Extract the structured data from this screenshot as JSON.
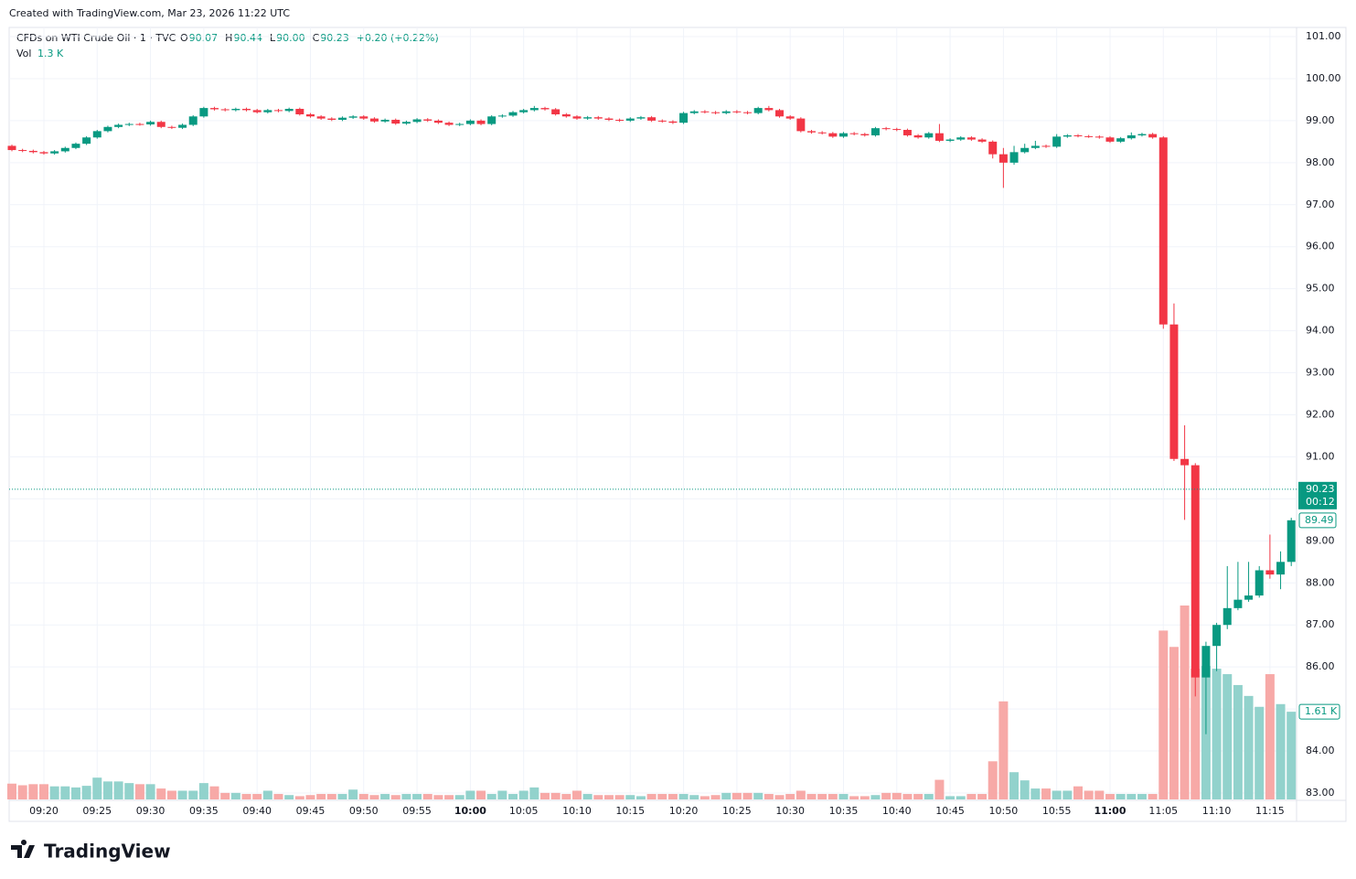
{
  "header": {
    "created": "Created with TradingView.com, Mar 23, 2026 11:22 UTC",
    "footer_logo": "TradingView"
  },
  "chart_data": {
    "type": "candlestick",
    "title": "CFDs on WTI Crude Oil · 1 · TVC",
    "ohlc_legend": [
      {
        "name": "O",
        "value": 90.07,
        "label": "90.07"
      },
      {
        "name": "H",
        "value": 90.44,
        "label": "90.44"
      },
      {
        "name": "L",
        "value": 90.0,
        "label": "90.00"
      },
      {
        "name": "C",
        "value": 90.23,
        "label": "90.23"
      }
    ],
    "change_label": "+0.20 (+0.22%)",
    "volume_legend": {
      "name": "Vol",
      "value": 1.3,
      "label": "1.3 K"
    },
    "up_color": "#089981",
    "down_color": "#f23645",
    "volume_up_color": "#92d2cc",
    "volume_down_color": "#f7a9a7",
    "ylim": [
      83,
      101
    ],
    "yticks": [
      {
        "value": 83,
        "label": "83.00"
      },
      {
        "value": 84,
        "label": "84.00"
      },
      {
        "value": 85,
        "label": "85.00"
      },
      {
        "value": 86,
        "label": "86.00"
      },
      {
        "value": 87,
        "label": "87.00"
      },
      {
        "value": 88,
        "label": "88.00"
      },
      {
        "value": 89,
        "label": "89.00"
      },
      {
        "value": 90,
        "label": "90.00"
      },
      {
        "value": 91,
        "label": "91.00"
      },
      {
        "value": 92,
        "label": "92.00"
      },
      {
        "value": 93,
        "label": "93.00"
      },
      {
        "value": 94,
        "label": "94.00"
      },
      {
        "value": 95,
        "label": "95.00"
      },
      {
        "value": 96,
        "label": "96.00"
      },
      {
        "value": 97,
        "label": "97.00"
      },
      {
        "value": 98,
        "label": "98.00"
      },
      {
        "value": 99,
        "label": "99.00"
      },
      {
        "value": 100,
        "label": "100.00"
      },
      {
        "value": 101,
        "label": "101.00"
      }
    ],
    "grid": true,
    "last_price": {
      "value": 90.23,
      "label": "90.23",
      "countdown": "00:12"
    },
    "close_marker": {
      "value": 89.49,
      "label": "89.49"
    },
    "volume_marker": {
      "value": 1.61,
      "label": "1.61 K"
    },
    "categories": [
      null,
      null,
      null,
      "09:20",
      null,
      null,
      null,
      null,
      "09:25",
      null,
      null,
      null,
      null,
      "09:30",
      null,
      null,
      null,
      null,
      "09:35",
      null,
      null,
      null,
      null,
      "09:40",
      null,
      null,
      null,
      null,
      "09:45",
      null,
      null,
      null,
      null,
      "09:50",
      null,
      null,
      null,
      null,
      "09:55",
      null,
      null,
      null,
      null,
      "10:00",
      null,
      null,
      null,
      null,
      "10:05",
      null,
      null,
      null,
      null,
      "10:10",
      null,
      null,
      null,
      null,
      "10:15",
      null,
      null,
      null,
      null,
      "10:20",
      null,
      null,
      null,
      null,
      "10:25",
      null,
      null,
      null,
      null,
      "10:30",
      null,
      null,
      null,
      null,
      "10:35",
      null,
      null,
      null,
      null,
      "10:40",
      null,
      null,
      null,
      null,
      "10:45",
      null,
      null,
      null,
      null,
      "10:50",
      null,
      null,
      null,
      null,
      "10:55",
      null,
      null,
      null,
      null,
      "11:00",
      null,
      null,
      null,
      null,
      "11:05",
      null,
      null,
      null,
      null,
      "11:10",
      null,
      null,
      null,
      null,
      "11:15",
      null,
      null
    ],
    "ohlc": [
      [
        98.4,
        98.43,
        98.27,
        98.3
      ],
      [
        98.3,
        98.33,
        98.25,
        98.28
      ],
      [
        98.28,
        98.31,
        98.22,
        98.25
      ],
      [
        98.25,
        98.28,
        98.19,
        98.22
      ],
      [
        98.22,
        98.3,
        98.19,
        98.27
      ],
      [
        98.27,
        98.38,
        98.24,
        98.35
      ],
      [
        98.35,
        98.48,
        98.32,
        98.45
      ],
      [
        98.45,
        98.63,
        98.42,
        98.6
      ],
      [
        98.6,
        98.78,
        98.57,
        98.75
      ],
      [
        98.75,
        98.88,
        98.72,
        98.85
      ],
      [
        98.85,
        98.93,
        98.82,
        98.9
      ],
      [
        98.9,
        98.95,
        98.87,
        98.92
      ],
      [
        98.92,
        98.95,
        98.88,
        98.91
      ],
      [
        98.91,
        99.0,
        98.88,
        98.97
      ],
      [
        98.97,
        99.0,
        98.82,
        98.85
      ],
      [
        98.85,
        98.88,
        98.8,
        98.83
      ],
      [
        98.83,
        98.93,
        98.8,
        98.9
      ],
      [
        98.9,
        99.13,
        98.87,
        99.1
      ],
      [
        99.1,
        99.33,
        99.07,
        99.3
      ],
      [
        99.3,
        99.33,
        99.24,
        99.27
      ],
      [
        99.27,
        99.3,
        99.22,
        99.25
      ],
      [
        99.25,
        99.31,
        99.22,
        99.28
      ],
      [
        99.28,
        99.31,
        99.22,
        99.25
      ],
      [
        99.25,
        99.28,
        99.17,
        99.2
      ],
      [
        99.2,
        99.28,
        99.17,
        99.25
      ],
      [
        99.25,
        99.28,
        99.2,
        99.23
      ],
      [
        99.23,
        99.31,
        99.2,
        99.28
      ],
      [
        99.28,
        99.31,
        99.12,
        99.15
      ],
      [
        99.15,
        99.18,
        99.07,
        99.1
      ],
      [
        99.1,
        99.13,
        99.02,
        99.05
      ],
      [
        99.05,
        99.08,
        98.99,
        99.02
      ],
      [
        99.02,
        99.1,
        98.99,
        99.07
      ],
      [
        99.07,
        99.13,
        99.04,
        99.1
      ],
      [
        99.1,
        99.13,
        99.02,
        99.05
      ],
      [
        99.05,
        99.08,
        98.95,
        98.98
      ],
      [
        98.98,
        99.05,
        98.95,
        99.02
      ],
      [
        99.02,
        99.05,
        98.9,
        98.93
      ],
      [
        98.93,
        99.0,
        98.9,
        98.97
      ],
      [
        98.97,
        99.06,
        98.94,
        99.03
      ],
      [
        99.03,
        99.06,
        98.97,
        99.0
      ],
      [
        99.0,
        99.03,
        98.92,
        98.95
      ],
      [
        98.95,
        98.98,
        98.87,
        98.9
      ],
      [
        98.9,
        98.95,
        98.87,
        98.92
      ],
      [
        98.92,
        99.03,
        98.89,
        99.0
      ],
      [
        99.0,
        99.03,
        98.89,
        98.92
      ],
      [
        98.92,
        99.13,
        98.89,
        99.1
      ],
      [
        99.1,
        99.15,
        99.07,
        99.12
      ],
      [
        99.12,
        99.23,
        99.09,
        99.2
      ],
      [
        99.2,
        99.28,
        99.17,
        99.25
      ],
      [
        99.25,
        99.35,
        99.22,
        99.3
      ],
      [
        99.3,
        99.33,
        99.24,
        99.27
      ],
      [
        99.27,
        99.3,
        99.12,
        99.15
      ],
      [
        99.15,
        99.18,
        99.07,
        99.1
      ],
      [
        99.1,
        99.13,
        99.02,
        99.05
      ],
      [
        99.05,
        99.11,
        99.02,
        99.08
      ],
      [
        99.08,
        99.11,
        99.02,
        99.05
      ],
      [
        99.05,
        99.08,
        98.99,
        99.02
      ],
      [
        99.02,
        99.05,
        98.97,
        99.0
      ],
      [
        99.0,
        99.08,
        98.97,
        99.05
      ],
      [
        99.05,
        99.11,
        99.02,
        99.08
      ],
      [
        99.08,
        99.11,
        98.97,
        99.0
      ],
      [
        99.0,
        99.03,
        98.95,
        98.98
      ],
      [
        98.98,
        99.01,
        98.92,
        98.95
      ],
      [
        98.95,
        99.21,
        98.92,
        99.18
      ],
      [
        99.18,
        99.25,
        99.15,
        99.22
      ],
      [
        99.22,
        99.25,
        99.17,
        99.2
      ],
      [
        99.2,
        99.23,
        99.15,
        99.18
      ],
      [
        99.18,
        99.25,
        99.15,
        99.22
      ],
      [
        99.22,
        99.25,
        99.17,
        99.2
      ],
      [
        99.2,
        99.23,
        99.15,
        99.18
      ],
      [
        99.18,
        99.33,
        99.15,
        99.3
      ],
      [
        99.3,
        99.35,
        99.22,
        99.25
      ],
      [
        99.25,
        99.28,
        99.07,
        99.1
      ],
      [
        99.1,
        99.13,
        99.02,
        99.05
      ],
      [
        99.05,
        99.08,
        98.72,
        98.75
      ],
      [
        98.75,
        98.78,
        98.69,
        98.72
      ],
      [
        98.72,
        98.75,
        98.67,
        98.7
      ],
      [
        98.7,
        98.73,
        98.59,
        98.62
      ],
      [
        98.62,
        98.73,
        98.59,
        98.7
      ],
      [
        98.7,
        98.73,
        98.65,
        98.68
      ],
      [
        98.68,
        98.71,
        98.62,
        98.65
      ],
      [
        98.65,
        98.85,
        98.62,
        98.82
      ],
      [
        98.82,
        98.85,
        98.77,
        98.8
      ],
      [
        98.8,
        98.83,
        98.75,
        98.78
      ],
      [
        98.78,
        98.81,
        98.62,
        98.65
      ],
      [
        98.65,
        98.68,
        98.57,
        98.6
      ],
      [
        98.6,
        98.73,
        98.57,
        98.7
      ],
      [
        98.7,
        98.92,
        98.49,
        98.52
      ],
      [
        98.52,
        98.58,
        98.49,
        98.55
      ],
      [
        98.55,
        98.63,
        98.52,
        98.6
      ],
      [
        98.6,
        98.63,
        98.52,
        98.55
      ],
      [
        98.55,
        98.58,
        98.47,
        98.5
      ],
      [
        98.5,
        98.53,
        98.1,
        98.2
      ],
      [
        98.2,
        98.35,
        97.4,
        98.0
      ],
      [
        98.0,
        98.4,
        97.95,
        98.25
      ],
      [
        98.25,
        98.45,
        98.22,
        98.35
      ],
      [
        98.35,
        98.52,
        98.32,
        98.4
      ],
      [
        98.4,
        98.43,
        98.35,
        98.38
      ],
      [
        98.38,
        98.68,
        98.35,
        98.62
      ],
      [
        98.62,
        98.68,
        98.59,
        98.65
      ],
      [
        98.65,
        98.68,
        98.6,
        98.63
      ],
      [
        98.63,
        98.66,
        98.59,
        98.62
      ],
      [
        98.62,
        98.65,
        98.57,
        98.6
      ],
      [
        98.6,
        98.63,
        98.47,
        98.5
      ],
      [
        98.5,
        98.61,
        98.47,
        98.58
      ],
      [
        98.58,
        98.72,
        98.55,
        98.65
      ],
      [
        98.65,
        98.71,
        98.62,
        98.68
      ],
      [
        98.68,
        98.71,
        98.57,
        98.6
      ],
      [
        98.6,
        98.63,
        94.05,
        94.15
      ],
      [
        94.15,
        94.65,
        90.9,
        90.95
      ],
      [
        90.95,
        91.75,
        89.5,
        90.8
      ],
      [
        90.8,
        90.85,
        85.3,
        85.75
      ],
      [
        85.75,
        86.6,
        84.4,
        86.5
      ],
      [
        86.5,
        87.05,
        85.9,
        87.0
      ],
      [
        87.0,
        88.4,
        86.9,
        87.4
      ],
      [
        87.4,
        88.5,
        87.35,
        87.6
      ],
      [
        87.6,
        88.5,
        87.55,
        87.7
      ],
      [
        87.7,
        88.4,
        87.65,
        88.3
      ],
      [
        88.3,
        89.15,
        88.1,
        88.2
      ],
      [
        88.2,
        88.75,
        87.85,
        88.5
      ],
      [
        88.5,
        89.55,
        88.4,
        89.49
      ]
    ],
    "volume": [
      0.29,
      0.26,
      0.28,
      0.28,
      0.24,
      0.24,
      0.22,
      0.25,
      0.4,
      0.33,
      0.33,
      0.3,
      0.28,
      0.28,
      0.2,
      0.16,
      0.16,
      0.16,
      0.3,
      0.24,
      0.12,
      0.12,
      0.1,
      0.1,
      0.16,
      0.1,
      0.08,
      0.06,
      0.08,
      0.1,
      0.1,
      0.1,
      0.18,
      0.1,
      0.08,
      0.1,
      0.08,
      0.1,
      0.1,
      0.1,
      0.08,
      0.08,
      0.08,
      0.16,
      0.16,
      0.1,
      0.16,
      0.1,
      0.16,
      0.22,
      0.12,
      0.12,
      0.1,
      0.16,
      0.1,
      0.08,
      0.08,
      0.08,
      0.08,
      0.06,
      0.1,
      0.1,
      0.1,
      0.1,
      0.08,
      0.06,
      0.08,
      0.12,
      0.12,
      0.12,
      0.12,
      0.1,
      0.08,
      0.1,
      0.16,
      0.1,
      0.1,
      0.1,
      0.1,
      0.06,
      0.06,
      0.08,
      0.12,
      0.12,
      0.1,
      0.1,
      0.1,
      0.36,
      0.06,
      0.06,
      0.1,
      0.1,
      0.7,
      1.8,
      0.5,
      0.35,
      0.2,
      0.2,
      0.16,
      0.16,
      0.24,
      0.16,
      0.16,
      0.1,
      0.1,
      0.1,
      0.1,
      0.1,
      3.1,
      2.8,
      3.56,
      2.4,
      2.45,
      2.4,
      2.3,
      2.1,
      1.9,
      1.7,
      2.3,
      1.75,
      1.61
    ]
  }
}
